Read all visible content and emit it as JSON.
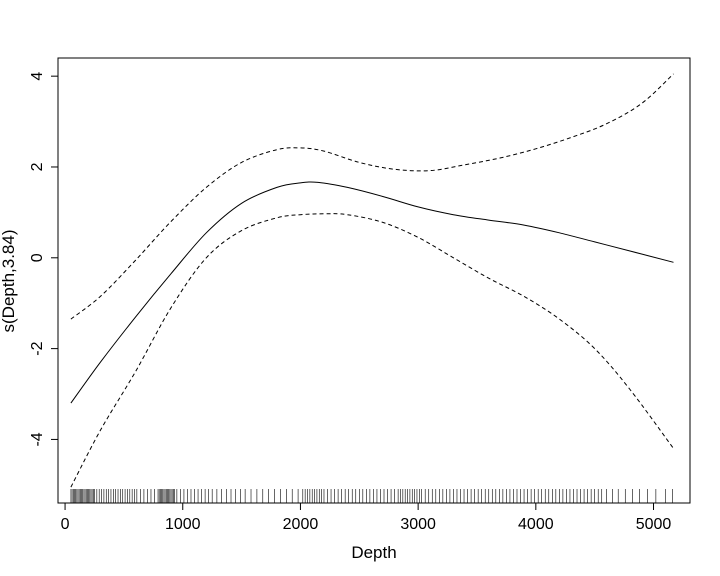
{
  "chart_data": {
    "type": "line",
    "title": "",
    "xlabel": "Depth",
    "ylabel": "s(Depth,3.84)",
    "xlim": [
      -60,
      5310
    ],
    "ylim": [
      -5.4,
      4.4
    ],
    "x_ticks": [
      0,
      1000,
      2000,
      3000,
      4000,
      5000
    ],
    "x_tick_labels": [
      "0",
      "1000",
      "2000",
      "3000",
      "4000",
      "5000"
    ],
    "y_ticks": [
      -4,
      -2,
      0,
      2,
      4
    ],
    "y_tick_labels": [
      "-4",
      "-2",
      "0",
      "2",
      "4"
    ],
    "grid": false,
    "legend": "none",
    "series": [
      {
        "style": "solid",
        "x": [
          50,
          300,
          600,
          900,
          1200,
          1500,
          1800,
          2000,
          2150,
          2400,
          2700,
          3000,
          3300,
          3600,
          3900,
          4200,
          4500,
          4800,
          5170
        ],
        "y": [
          -3.2,
          -2.3,
          -1.3,
          -0.35,
          0.55,
          1.2,
          1.55,
          1.65,
          1.66,
          1.55,
          1.35,
          1.12,
          0.95,
          0.83,
          0.72,
          0.55,
          0.35,
          0.15,
          -0.1
        ]
      },
      {
        "style": "dashed",
        "x": [
          50,
          300,
          600,
          900,
          1200,
          1500,
          1800,
          2000,
          2200,
          2500,
          2800,
          3100,
          3400,
          3700,
          4000,
          4300,
          4600,
          4900,
          5170
        ],
        "y": [
          -1.35,
          -0.85,
          -0.05,
          0.8,
          1.55,
          2.1,
          2.38,
          2.42,
          2.35,
          2.1,
          1.95,
          1.92,
          2.05,
          2.2,
          2.4,
          2.65,
          2.95,
          3.4,
          4.05
        ]
      },
      {
        "style": "dashed",
        "x": [
          50,
          300,
          600,
          900,
          1200,
          1500,
          1800,
          2000,
          2200,
          2400,
          2700,
          3000,
          3300,
          3600,
          3900,
          4200,
          4500,
          4800,
          5170
        ],
        "y": [
          -5.05,
          -3.8,
          -2.5,
          -1.1,
          0.0,
          0.6,
          0.88,
          0.95,
          0.97,
          0.95,
          0.78,
          0.45,
          0.0,
          -0.45,
          -0.85,
          -1.35,
          -2.0,
          -2.9,
          -4.2
        ]
      }
    ],
    "rug": [
      50,
      60,
      70,
      80,
      90,
      100,
      110,
      120,
      130,
      140,
      150,
      160,
      170,
      180,
      190,
      200,
      210,
      220,
      230,
      240,
      250,
      270,
      290,
      310,
      330,
      350,
      370,
      390,
      410,
      430,
      450,
      470,
      490,
      510,
      530,
      550,
      570,
      590,
      610,
      640,
      670,
      700,
      730,
      760,
      790,
      800,
      810,
      820,
      830,
      840,
      850,
      860,
      870,
      880,
      890,
      900,
      910,
      920,
      930,
      950,
      980,
      1010,
      1040,
      1070,
      1100,
      1130,
      1160,
      1190,
      1220,
      1250,
      1290,
      1330,
      1370,
      1410,
      1450,
      1490,
      1530,
      1580,
      1630,
      1680,
      1730,
      1780,
      1830,
      1880,
      1930,
      1980,
      2020,
      2040,
      2060,
      2080,
      2100,
      2120,
      2140,
      2160,
      2180,
      2200,
      2230,
      2260,
      2290,
      2320,
      2350,
      2380,
      2410,
      2440,
      2470,
      2500,
      2530,
      2560,
      2590,
      2620,
      2650,
      2680,
      2710,
      2740,
      2770,
      2800,
      2830,
      2850,
      2870,
      2890,
      2910,
      2930,
      2950,
      2970,
      2990,
      3010,
      3030,
      3060,
      3090,
      3120,
      3150,
      3180,
      3210,
      3240,
      3270,
      3300,
      3330,
      3360,
      3390,
      3420,
      3450,
      3480,
      3510,
      3540,
      3570,
      3600,
      3630,
      3660,
      3690,
      3720,
      3750,
      3780,
      3810,
      3840,
      3870,
      3900,
      3930,
      3960,
      3990,
      4020,
      4050,
      4080,
      4110,
      4140,
      4170,
      4200,
      4230,
      4260,
      4290,
      4320,
      4350,
      4380,
      4410,
      4440,
      4470,
      4500,
      4530,
      4560,
      4600,
      4650,
      4700,
      4760,
      4820,
      4880,
      4950,
      5020,
      5100,
      5160
    ]
  }
}
